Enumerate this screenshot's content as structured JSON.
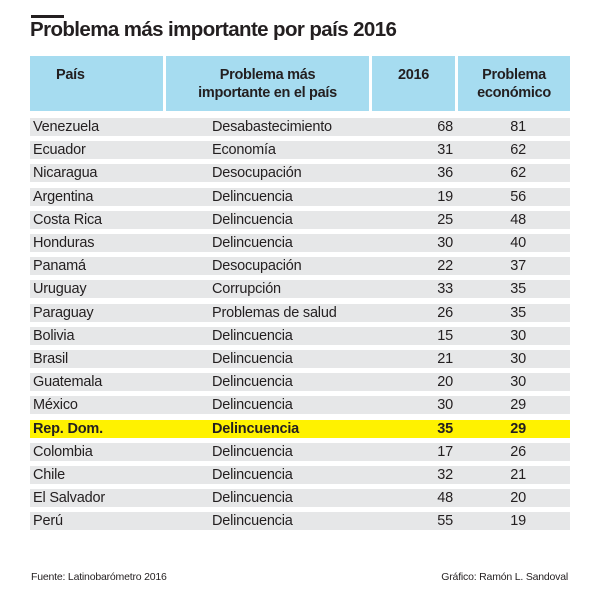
{
  "chart_data": {
    "type": "table",
    "title": "Problema más importante por país 2016",
    "columns": [
      "País",
      "Problema más importante en el país",
      "2016",
      "Problema económico"
    ],
    "rows": [
      {
        "pais": "Venezuela",
        "problema": "Desabastecimiento",
        "y2016": 68,
        "economico": 81
      },
      {
        "pais": "Ecuador",
        "problema": "Economía",
        "y2016": 31,
        "economico": 62
      },
      {
        "pais": "Nicaragua",
        "problema": "Desocupación",
        "y2016": 36,
        "economico": 62
      },
      {
        "pais": "Argentina",
        "problema": "Delincuencia",
        "y2016": 19,
        "economico": 56
      },
      {
        "pais": "Costa Rica",
        "problema": "Delincuencia",
        "y2016": 25,
        "economico": 48
      },
      {
        "pais": "Honduras",
        "problema": "Delincuencia",
        "y2016": 30,
        "economico": 40
      },
      {
        "pais": "Panamá",
        "problema": "Desocupación",
        "y2016": 22,
        "economico": 37
      },
      {
        "pais": "Uruguay",
        "problema": "Corrupción",
        "y2016": 33,
        "economico": 35
      },
      {
        "pais": "Paraguay",
        "problema": "Problemas de salud",
        "y2016": 26,
        "economico": 35
      },
      {
        "pais": "Bolivia",
        "problema": "Delincuencia",
        "y2016": 15,
        "economico": 30
      },
      {
        "pais": "Brasil",
        "problema": "Delincuencia",
        "y2016": 21,
        "economico": 30
      },
      {
        "pais": "Guatemala",
        "problema": "Delincuencia",
        "y2016": 20,
        "economico": 30
      },
      {
        "pais": "México",
        "problema": "Delincuencia",
        "y2016": 30,
        "economico": 29
      },
      {
        "pais": "Rep. Dom.",
        "problema": "Delincuencia",
        "y2016": 35,
        "economico": 29,
        "highlight": true
      },
      {
        "pais": "Colombia",
        "problema": "Delincuencia",
        "y2016": 17,
        "economico": 26
      },
      {
        "pais": "Chile",
        "problema": "Delincuencia",
        "y2016": 32,
        "economico": 21
      },
      {
        "pais": "El Salvador",
        "problema": "Delincuencia",
        "y2016": 48,
        "economico": 20
      },
      {
        "pais": "Perú",
        "problema": "Delincuencia",
        "y2016": 55,
        "economico": 19
      }
    ]
  },
  "header_lines": {
    "pais": "País",
    "problema_1": "Problema más",
    "problema_2": "importante en el país",
    "year": "2016",
    "econ_1": "Problema",
    "econ_2": "económico"
  },
  "footer": {
    "source": "Fuente: Latinobarómetro 2016",
    "credit": "Gráfico: Ramón L. Sandoval"
  },
  "colors": {
    "header": "#a6dcf0",
    "row": "#e6e7e8",
    "highlight": "#fff200"
  }
}
